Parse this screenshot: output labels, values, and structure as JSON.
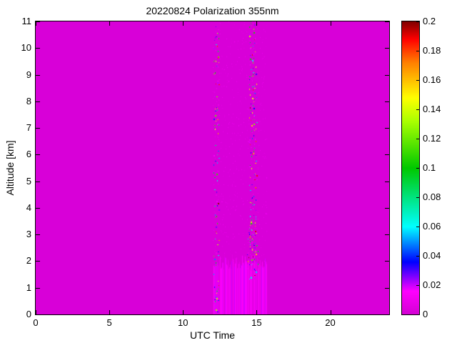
{
  "figure": {
    "background": "#ffffff",
    "text_color": "#000000",
    "axis_color": "#000000"
  },
  "chart_data": {
    "type": "heatmap",
    "title": "20220824 Polarization 355nm",
    "xlabel": "UTC Time",
    "ylabel": "Altitude [km]",
    "xlim": [
      0,
      24
    ],
    "ylim": [
      0,
      11
    ],
    "clim": [
      0,
      0.2
    ],
    "grid": false,
    "legend": "none",
    "colorbar_position": "right",
    "x_ticks": [
      0,
      5,
      10,
      15,
      20
    ],
    "y_ticks": [
      0,
      1,
      2,
      3,
      4,
      5,
      6,
      7,
      8,
      9,
      10,
      11
    ],
    "colorbar_ticks": [
      {
        "value": 0,
        "label": "0"
      },
      {
        "value": 0.02,
        "label": "0.02"
      },
      {
        "value": 0.04,
        "label": "0.04"
      },
      {
        "value": 0.06,
        "label": "0.06"
      },
      {
        "value": 0.08,
        "label": "0.08"
      },
      {
        "value": 0.1,
        "label": "0.1"
      },
      {
        "value": 0.12,
        "label": "0.12"
      },
      {
        "value": 0.14,
        "label": "0.14"
      },
      {
        "value": 0.16,
        "label": "0.16"
      },
      {
        "value": 0.18,
        "label": "0.18"
      },
      {
        "value": 0.2,
        "label": "0.2"
      }
    ],
    "colormap": {
      "name": "magenta-jet",
      "stops": [
        {
          "t": 0.0,
          "rgb": [
            210,
            0,
            210
          ]
        },
        {
          "t": 0.08,
          "rgb": [
            255,
            0,
            255
          ]
        },
        {
          "t": 0.18,
          "rgb": [
            0,
            0,
            255
          ]
        },
        {
          "t": 0.3,
          "rgb": [
            0,
            255,
            255
          ]
        },
        {
          "t": 0.5,
          "rgb": [
            0,
            200,
            0
          ]
        },
        {
          "t": 0.66,
          "rgb": [
            170,
            255,
            0
          ]
        },
        {
          "t": 0.74,
          "rgb": [
            255,
            255,
            0
          ]
        },
        {
          "t": 0.86,
          "rgb": [
            255,
            128,
            0
          ]
        },
        {
          "t": 0.94,
          "rgb": [
            255,
            0,
            0
          ]
        },
        {
          "t": 1.0,
          "rgb": [
            130,
            0,
            0
          ]
        }
      ]
    },
    "field": {
      "description": "Uniform low-depolarization magenta background; noisy measurement band between ~12.0 and ~15.7 UTC with a brighter surface layer below ~2 km and two speckled full-height noise stripes near 12.2 and 14.7 UTC.",
      "background_value": 0.002,
      "surface_band": {
        "x_range": [
          12.05,
          15.65
        ],
        "alt_range": [
          0,
          2.05
        ],
        "value_range": [
          0.004,
          0.02
        ]
      },
      "diffuse_band": {
        "x_range": [
          12.05,
          15.65
        ],
        "alt_range": [
          2.0,
          11
        ],
        "density": 0.025,
        "value_range": [
          0.003,
          0.013
        ]
      },
      "noise_stripes": [
        {
          "x_range": [
            12.1,
            12.45
          ],
          "alt_range": [
            0,
            11
          ],
          "density": 0.32,
          "value_range": [
            0.008,
            0.2
          ]
        },
        {
          "x_range": [
            14.5,
            15.0
          ],
          "alt_range": [
            1.3,
            11
          ],
          "density": 0.5,
          "value_range": [
            0.008,
            0.2
          ]
        },
        {
          "x_range": [
            14.35,
            15.1
          ],
          "alt_range": [
            1.6,
            3.2
          ],
          "density": 0.55,
          "value_range": [
            0.01,
            0.2
          ]
        }
      ]
    }
  }
}
